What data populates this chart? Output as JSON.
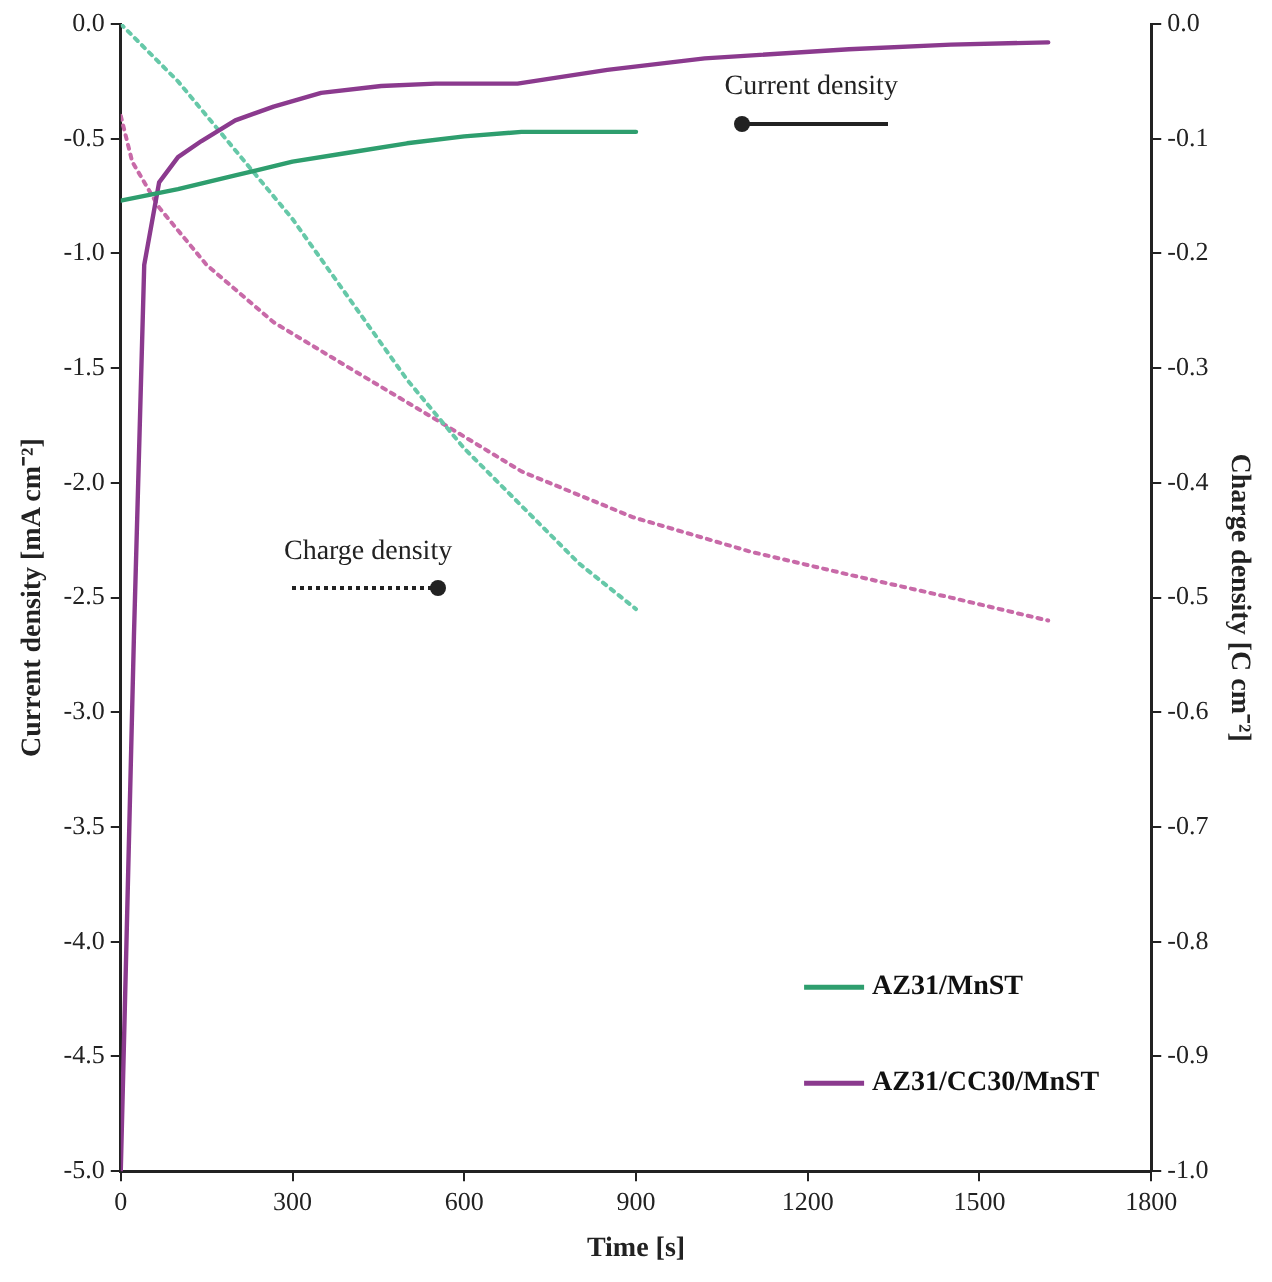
{
  "chart_data": {
    "type": "line",
    "xlabel": "Time [s]",
    "ylabel": "Current density [mA cm⁻²]",
    "y2label": "Charge density [C cm⁻²]",
    "xlim": [
      0,
      1800
    ],
    "xticks": [
      0,
      300,
      600,
      900,
      1200,
      1500,
      1800
    ],
    "ylim": [
      -5,
      0
    ],
    "yticks": [
      {
        "value": -5,
        "label": "-5.0"
      },
      {
        "value": -4.5,
        "label": "-4.5"
      },
      {
        "value": -4,
        "label": "-4.0"
      },
      {
        "value": -3.5,
        "label": "-3.5"
      },
      {
        "value": -3,
        "label": "-3.0"
      },
      {
        "value": -2.5,
        "label": "-2.5"
      },
      {
        "value": -2,
        "label": "-2.0"
      },
      {
        "value": -1.5,
        "label": "-1.5"
      },
      {
        "value": -1,
        "label": "-1.0"
      },
      {
        "value": -0.5,
        "label": "-0.5"
      },
      {
        "value": 0,
        "label": "0.0"
      }
    ],
    "y2lim": [
      -1,
      0
    ],
    "y2ticks": [
      {
        "value": -1,
        "label": "-1.0"
      },
      -0.9,
      -0.8,
      -0.7,
      -0.6,
      -0.5,
      -0.4,
      -0.3,
      -0.2,
      -0.1,
      {
        "value": 0,
        "label": "0.0"
      }
    ],
    "grid": false,
    "legend": "bottom right",
    "marker": "none",
    "annotations": [
      "Current density",
      "Charge density"
    ],
    "series": [
      {
        "name": "AZ31/MnST",
        "color": "#2e9e6e",
        "line_style": "solid",
        "x": [
          0,
          100,
          200,
          300,
          400,
          500,
          600,
          700,
          800,
          900
        ],
        "values": [
          -0.77,
          -0.72,
          -0.66,
          -0.6,
          -0.56,
          -0.52,
          -0.49,
          -0.47,
          -0.47,
          -0.47
        ]
      },
      {
        "name": "AZ31/CC30/MnST",
        "color": "#8b3a8e",
        "line_style": "solid",
        "x": [
          0,
          10,
          23,
          41,
          67,
          100,
          141,
          200,
          267,
          350,
          455,
          550,
          693,
          850,
          1020,
          1272,
          1450,
          1620
        ],
        "values": [
          -5,
          -4,
          -2.67,
          -1.05,
          -0.69,
          -0.58,
          -0.51,
          -0.42,
          -0.36,
          -0.3,
          -0.27,
          -0.26,
          -0.26,
          -0.2,
          -0.15,
          -0.11,
          -0.09,
          -0.08
        ]
      },
      {
        "color": "#66c8a8",
        "line_style": "dotted",
        "axis": "y2",
        "x": [
          0,
          100,
          200,
          300,
          400,
          500,
          600,
          700,
          800,
          900
        ],
        "values": [
          0,
          -0.05,
          -0.11,
          -0.17,
          -0.24,
          -0.31,
          -0.37,
          -0.42,
          -0.47,
          -0.51
        ]
      },
      {
        "color": "#c86aa8",
        "line_style": "dotted",
        "axis": "y2",
        "x": [
          0,
          20,
          67,
          150,
          267,
          400,
          568,
          700,
          895,
          1100,
          1272,
          1450,
          1620
        ],
        "values": [
          -0.08,
          -0.12,
          -0.16,
          -0.21,
          -0.26,
          -0.3,
          -0.35,
          -0.39,
          -0.43,
          -0.46,
          -0.48,
          -0.5,
          -0.52
        ]
      }
    ]
  }
}
